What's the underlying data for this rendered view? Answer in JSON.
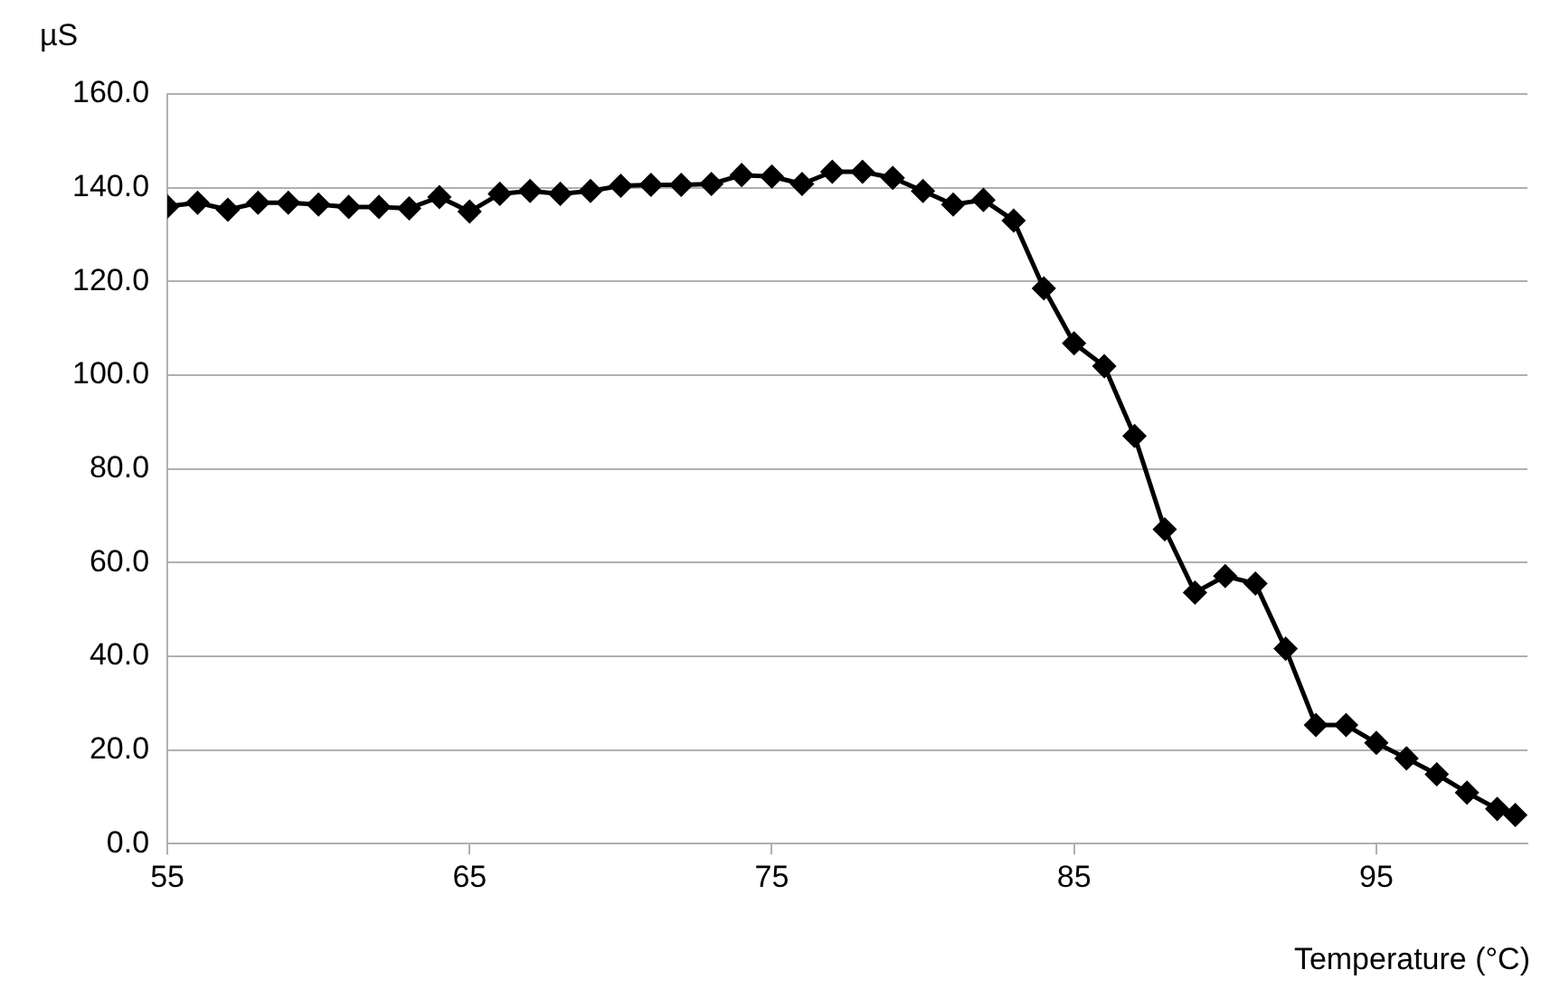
{
  "chart_data": {
    "type": "line",
    "ylabel": "µS",
    "xlabel": "Temperature (°C)",
    "x": [
      55,
      56,
      57,
      58,
      59,
      60,
      61,
      62,
      63,
      64,
      65,
      66,
      67,
      68,
      69,
      70,
      71,
      72,
      73,
      74,
      75,
      76,
      77,
      78,
      79,
      80,
      81,
      82,
      83,
      84,
      85,
      86,
      87,
      88,
      89,
      90,
      91,
      92,
      93,
      94,
      95,
      96,
      97,
      98,
      99,
      99.6
    ],
    "series": [
      {
        "color": "#000000",
        "values": [
          136.0,
          136.8,
          135.3,
          136.8,
          136.8,
          136.4,
          135.9,
          135.9,
          135.6,
          138.0,
          134.9,
          138.7,
          139.3,
          138.7,
          139.3,
          140.4,
          140.6,
          140.6,
          140.8,
          142.7,
          142.4,
          140.8,
          143.4,
          143.4,
          142.1,
          139.3,
          136.4,
          137.4,
          133.0,
          118.5,
          106.8,
          101.9,
          87.0,
          67.1,
          53.6,
          57.1,
          55.5,
          41.6,
          25.3,
          25.3,
          21.5,
          18.2,
          14.8,
          10.9,
          7.4,
          6.1
        ]
      }
    ],
    "xlim": [
      55,
      100
    ],
    "xticks": [
      55,
      65,
      75,
      85,
      95
    ],
    "ylim": [
      0,
      160
    ],
    "yticks": [
      {
        "value": 0,
        "label": "0.0"
      },
      {
        "value": 20,
        "label": "20.0"
      },
      {
        "value": 40,
        "label": "40.0"
      },
      {
        "value": 60,
        "label": "60.0"
      },
      {
        "value": 80,
        "label": "80.0"
      },
      {
        "value": 100,
        "label": "100.0"
      },
      {
        "value": 120,
        "label": "120.0"
      },
      {
        "value": 140,
        "label": "140.0"
      },
      {
        "value": 160,
        "label": "160.0"
      }
    ],
    "grid": "y",
    "legend": false,
    "marker": "diamond",
    "line_style": "solid"
  }
}
